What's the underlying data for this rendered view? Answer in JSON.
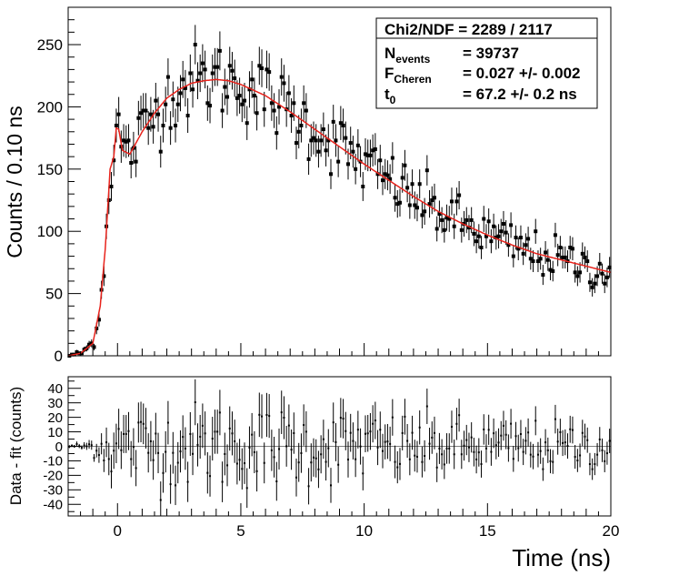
{
  "chart_data": [
    {
      "type": "scatter",
      "panel": "main",
      "title": "",
      "xlabel": "Time (ns)",
      "ylabel": "Counts / 0.10 ns",
      "xlim": [
        -2,
        20
      ],
      "ylim": [
        0,
        280
      ],
      "xticks": [
        0,
        5,
        10,
        15,
        20
      ],
      "yticks": [
        0,
        50,
        100,
        150,
        200,
        250
      ],
      "series": [
        {
          "name": "Data",
          "style": "points with error bars",
          "color": "#000000"
        },
        {
          "name": "Fit",
          "style": "line",
          "color": "#e8231c"
        }
      ],
      "fit_model": {
        "description": "Fast Cherenkov peak near t0 plus slow scintillation component, rise near -0.5 ns, peak ~222 counts near 3.7 ns, ~67 counts at 20 ns",
        "points": [
          [
            -2,
            0
          ],
          [
            -1.5,
            2
          ],
          [
            -1,
            10
          ],
          [
            -0.7,
            40
          ],
          [
            -0.5,
            85
          ],
          [
            -0.3,
            150
          ],
          [
            -0.15,
            160
          ],
          [
            -0.05,
            183
          ],
          [
            0.05,
            182
          ],
          [
            0.2,
            165
          ],
          [
            0.5,
            162
          ],
          [
            1,
            180
          ],
          [
            1.5,
            195
          ],
          [
            2,
            207
          ],
          [
            2.5,
            214
          ],
          [
            3,
            219
          ],
          [
            3.5,
            221
          ],
          [
            4,
            222
          ],
          [
            4.5,
            221
          ],
          [
            5,
            218
          ],
          [
            6,
            209
          ],
          [
            7,
            196
          ],
          [
            8,
            182
          ],
          [
            9,
            168
          ],
          [
            10,
            154
          ],
          [
            11,
            141
          ],
          [
            12,
            128
          ],
          [
            13,
            116
          ],
          [
            14,
            106
          ],
          [
            15,
            97
          ],
          [
            16,
            89
          ],
          [
            17,
            82
          ],
          [
            18,
            77
          ],
          [
            19,
            72
          ],
          [
            20,
            67
          ]
        ]
      },
      "legend": {
        "position": "top-right",
        "lines": [
          {
            "label": "Chi2/NDF",
            "sub": "",
            "value": " = 2289 / 2117"
          },
          {
            "label": "N",
            "sub": "events",
            "value": "= 39737"
          },
          {
            "label": "F",
            "sub": "Cheren",
            "value": "= 0.027 +/- 0.002"
          },
          {
            "label": "t",
            "sub": "0",
            "value": "= 67.2 +/- 0.2 ns"
          }
        ]
      },
      "data_summary": "Approximately 220 binned data points (0.10 ns bins) scattered around the fit curve with error bars ~ sqrt(counts)"
    },
    {
      "type": "scatter",
      "panel": "residual",
      "xlabel": "Time (ns)",
      "ylabel": "Data - fit (counts)",
      "xlim": [
        -2,
        20
      ],
      "ylim": [
        -48,
        48
      ],
      "xticks": [
        0,
        5,
        10,
        15,
        20
      ],
      "yticks": [
        40,
        30,
        20,
        10,
        0,
        -10,
        -20,
        -30,
        -40
      ],
      "series": [
        {
          "name": "Residuals",
          "style": "points with error bars",
          "color": "#000000"
        }
      ],
      "data_summary": "Residuals centered on zero, spread roughly +/-25 counts after the rise, small near t < -1 ns"
    }
  ],
  "labels": {
    "main_y": "Counts / 0.10 ns",
    "resid_y": "Data - fit (counts)",
    "x_title": "Time (ns)"
  }
}
